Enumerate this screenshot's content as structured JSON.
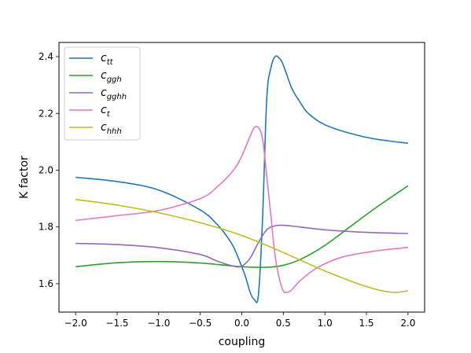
{
  "chart_data": {
    "type": "line",
    "title": "",
    "xlabel": "coupling",
    "ylabel": "K factor",
    "xlim": [
      -2.2,
      2.2
    ],
    "ylim": [
      1.5,
      2.45
    ],
    "xticks": [
      -2.0,
      -1.5,
      -1.0,
      -0.5,
      0.0,
      0.5,
      1.0,
      1.5,
      2.0
    ],
    "xtick_labels": [
      "−2.0",
      "−1.5",
      "−1.0",
      "−0.5",
      "0.0",
      "0.5",
      "1.0",
      "1.5",
      "2.0"
    ],
    "yticks": [
      1.6,
      1.8,
      2.0,
      2.2,
      2.4
    ],
    "ytick_labels": [
      "1.6",
      "1.8",
      "2.0",
      "2.2",
      "2.4"
    ],
    "grid": false,
    "legend": "top-left",
    "series": [
      {
        "name": "c_tt",
        "label_main": "c",
        "label_sub": "tt",
        "color": "#1f77b4",
        "x": [
          -2.0,
          -1.5,
          -1.0,
          -0.5,
          -0.3,
          -0.2,
          -0.1,
          0.0,
          0.05,
          0.1,
          0.15,
          0.2,
          0.25,
          0.3,
          0.35,
          0.4,
          0.45,
          0.5,
          0.6,
          0.7,
          0.8,
          1.0,
          1.3,
          1.6,
          2.0
        ],
        "y": [
          1.975,
          1.96,
          1.93,
          1.86,
          1.81,
          1.775,
          1.73,
          1.66,
          1.62,
          1.57,
          1.545,
          1.56,
          1.83,
          2.25,
          2.36,
          2.4,
          2.395,
          2.37,
          2.29,
          2.24,
          2.2,
          2.16,
          2.13,
          2.11,
          2.095
        ]
      },
      {
        "name": "c_ggh",
        "label_main": "c",
        "label_sub": "ggh",
        "color": "#2ca02c",
        "x": [
          -2.0,
          -1.5,
          -1.0,
          -0.5,
          0.0,
          0.3,
          0.5,
          0.7,
          1.0,
          1.3,
          1.6,
          2.0
        ],
        "y": [
          1.66,
          1.674,
          1.678,
          1.673,
          1.66,
          1.658,
          1.665,
          1.685,
          1.735,
          1.8,
          1.865,
          1.945
        ]
      },
      {
        "name": "c_gghh",
        "label_main": "c",
        "label_sub": "gghh",
        "color": "#9467bd",
        "x": [
          -2.0,
          -1.5,
          -1.0,
          -0.5,
          -0.3,
          -0.1,
          0.0,
          0.1,
          0.2,
          0.3,
          0.4,
          0.5,
          0.7,
          1.0,
          1.5,
          2.0
        ],
        "y": [
          1.742,
          1.738,
          1.727,
          1.703,
          1.68,
          1.662,
          1.662,
          1.69,
          1.745,
          1.79,
          1.804,
          1.806,
          1.8,
          1.79,
          1.781,
          1.777
        ]
      },
      {
        "name": "c_t",
        "label_main": "c",
        "label_sub": "t",
        "color": "#e377c2",
        "x": [
          -2.0,
          -1.5,
          -1.0,
          -0.5,
          -0.3,
          -0.1,
          0.0,
          0.1,
          0.15,
          0.2,
          0.25,
          0.3,
          0.35,
          0.4,
          0.45,
          0.5,
          0.55,
          0.6,
          0.7,
          0.9,
          1.2,
          1.6,
          2.0
        ],
        "y": [
          1.823,
          1.84,
          1.858,
          1.9,
          1.94,
          2.0,
          2.05,
          2.12,
          2.15,
          2.15,
          2.11,
          1.98,
          1.84,
          1.7,
          1.62,
          1.575,
          1.57,
          1.578,
          1.61,
          1.655,
          1.693,
          1.715,
          1.728
        ]
      },
      {
        "name": "c_hhh",
        "label_main": "c",
        "label_sub": "hhh",
        "color": "#bcbd22",
        "x": [
          -2.0,
          -1.5,
          -1.0,
          -0.5,
          0.0,
          0.5,
          1.0,
          1.5,
          1.8,
          2.0
        ],
        "y": [
          1.897,
          1.877,
          1.85,
          1.815,
          1.77,
          1.71,
          1.645,
          1.59,
          1.57,
          1.575
        ]
      }
    ]
  }
}
